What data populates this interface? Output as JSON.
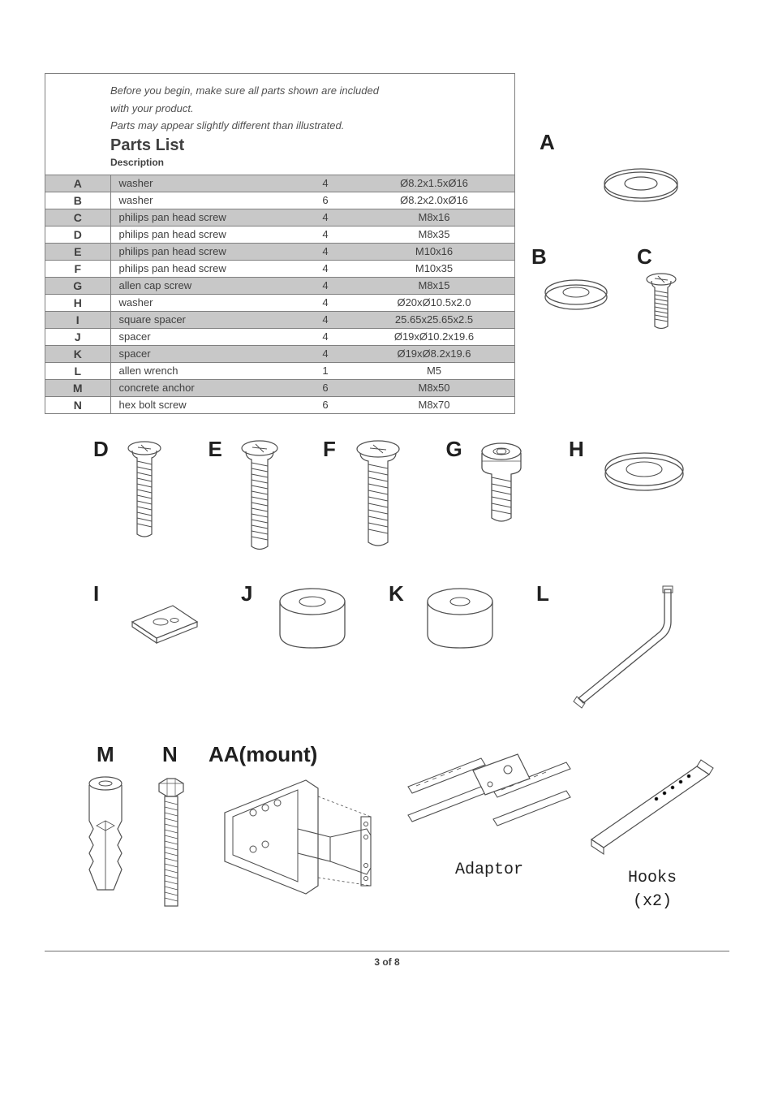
{
  "intro_line1": "Before you begin, make sure all parts shown are included",
  "intro_line2": "with your product.",
  "intro_line3": "Parts may appear slightly different than illustrated.",
  "parts_list_title": "Parts List",
  "description_label": "Description",
  "table": {
    "columns": [
      "letter",
      "description",
      "qty",
      "size"
    ],
    "rows": [
      {
        "letter": "A",
        "description": "washer",
        "qty": "4",
        "size": "Ø8.2x1.5xØ16",
        "alt": true
      },
      {
        "letter": "B",
        "description": "washer",
        "qty": "6",
        "size": "Ø8.2x2.0xØ16",
        "alt": false
      },
      {
        "letter": "C",
        "description": "philips pan head screw",
        "qty": "4",
        "size": "M8x16",
        "alt": true
      },
      {
        "letter": "D",
        "description": "philips pan head screw",
        "qty": "4",
        "size": "M8x35",
        "alt": false
      },
      {
        "letter": "E",
        "description": "philips pan head screw",
        "qty": "4",
        "size": "M10x16",
        "alt": true
      },
      {
        "letter": "F",
        "description": "philips pan head screw",
        "qty": "4",
        "size": "M10x35",
        "alt": false
      },
      {
        "letter": "G",
        "description": "allen cap screw",
        "qty": "4",
        "size": "M8x15",
        "alt": true
      },
      {
        "letter": "H",
        "description": "washer",
        "qty": "4",
        "size": "Ø20xØ10.5x2.0",
        "alt": false
      },
      {
        "letter": "I",
        "description": "square spacer",
        "qty": "4",
        "size": "25.65x25.65x2.5",
        "alt": true
      },
      {
        "letter": "J",
        "description": "spacer",
        "qty": "4",
        "size": "Ø19xØ10.2x19.6",
        "alt": false
      },
      {
        "letter": "K",
        "description": "spacer",
        "qty": "4",
        "size": "Ø19xØ8.2x19.6",
        "alt": true
      },
      {
        "letter": "L",
        "description": "allen wrench",
        "qty": "1",
        "size": "M5",
        "alt": false
      },
      {
        "letter": "M",
        "description": "concrete anchor",
        "qty": "6",
        "size": "M8x50",
        "alt": true
      },
      {
        "letter": "N",
        "description": "hex bolt screw",
        "qty": "6",
        "size": "M8x70",
        "alt": false
      }
    ],
    "header_bg": "#ffffff",
    "alt_bg": "#c8c8c8",
    "border_color": "#808080",
    "text_color": "#404040",
    "fontsize": 13
  },
  "illustration_labels": {
    "A": "A",
    "B": "B",
    "C": "C",
    "D": "D",
    "E": "E",
    "F": "F",
    "G": "G",
    "H": "H",
    "I": "I",
    "J": "J",
    "K": "K",
    "L": "L",
    "M": "M",
    "N": "N",
    "AA": "AA(mount)",
    "Adaptor": "Adaptor",
    "Hooks": "Hooks",
    "HooksQty": "(x2)"
  },
  "page_footer": "3 of 8",
  "theme": {
    "page_bg": "#ffffff",
    "stroke": "#505050",
    "label_color": "#202020",
    "italic_color": "#505050",
    "title_fontsize": 20,
    "label_fontsize": 22,
    "big_label_fontsize": 26,
    "mono_fontsize": 20
  }
}
